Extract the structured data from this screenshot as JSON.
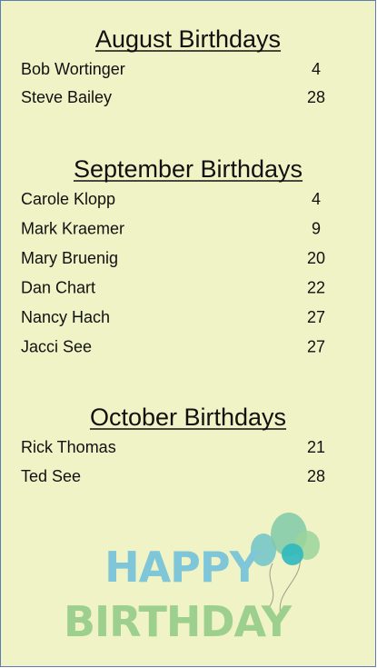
{
  "sections": [
    {
      "title": "August Birthdays",
      "entries": [
        {
          "name": "Bob Wortinger",
          "day": 4
        },
        {
          "name": "Steve Bailey",
          "day": 28
        }
      ]
    },
    {
      "title": "September Birthdays",
      "entries": [
        {
          "name": "Carole Klopp",
          "day": 4
        },
        {
          "name": "Mark Kraemer",
          "day": 9
        },
        {
          "name": "Mary Bruenig",
          "day": 20
        },
        {
          "name": "Dan Chart",
          "day": 22
        },
        {
          "name": "Nancy Hach",
          "day": 27
        },
        {
          "name": "Jacci See",
          "day": 27
        }
      ]
    },
    {
      "title": "October Birthdays",
      "entries": [
        {
          "name": "Rick Thomas",
          "day": 21
        },
        {
          "name": "Ted See",
          "day": 28
        }
      ]
    }
  ],
  "graphic": {
    "line1": "HAPPY",
    "line2": "BIRTHDAY"
  }
}
